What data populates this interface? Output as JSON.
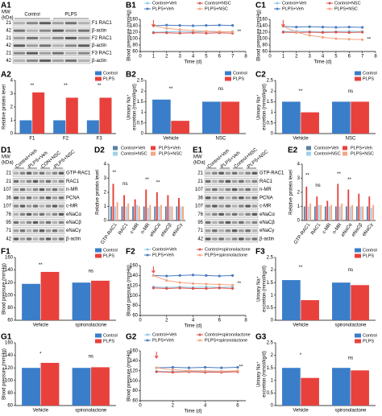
{
  "blots": [
    {
      "label": "A1",
      "mw_title": [
        "MW",
        "(kDa)"
      ],
      "lanes": [
        "Control",
        "PLPS"
      ],
      "rows": [
        {
          "mw": "21",
          "name": "F1 RAC1"
        },
        {
          "mw": "42",
          "name": "β-actin"
        },
        {
          "mw": "21",
          "name": "F2 RAC1"
        },
        {
          "mw": "42",
          "name": "β-actin"
        },
        {
          "mw": "21",
          "name": "F3 RAC1"
        },
        {
          "mw": "42",
          "name": "β-actin"
        }
      ]
    },
    {
      "label": "D1",
      "mw_title": [
        "MW",
        "(kDa)"
      ],
      "lanes": [
        "Control+Veh",
        "PLPS+Veh",
        "CON+NSC",
        "PLPS+NSC"
      ],
      "rows": [
        {
          "mw": "21",
          "name": "GTP-RAC1"
        },
        {
          "mw": "21",
          "name": "RAC1"
        },
        {
          "mw": "107",
          "name": "n-MR"
        },
        {
          "mw": "36",
          "name": "PCNA"
        },
        {
          "mw": "107",
          "name": "c-MR"
        },
        {
          "mw": "76",
          "name": "eNaCα"
        },
        {
          "mw": "95",
          "name": "eNaCβ"
        },
        {
          "mw": "71",
          "name": "eNaCγ"
        },
        {
          "mw": "42",
          "name": "β-actin"
        }
      ]
    },
    {
      "label": "E1",
      "mw_title": [
        "MW",
        "(kDa)"
      ],
      "lanes": [
        "Control+Veh",
        "PLPS+Veh",
        "Control+NSC",
        "PLPS+NSC"
      ],
      "rows": [
        {
          "mw": "21",
          "name": "GTP-RAC1"
        },
        {
          "mw": "21",
          "name": "RAC1"
        },
        {
          "mw": "107",
          "name": "n-MR"
        },
        {
          "mw": "36",
          "name": "PCNA"
        },
        {
          "mw": "107",
          "name": "c-MR"
        },
        {
          "mw": "76",
          "name": "eNaCα"
        },
        {
          "mw": "95",
          "name": "eNaCβ"
        },
        {
          "mw": "71",
          "name": "eNaCγ"
        },
        {
          "mw": "42",
          "name": "β-actin"
        }
      ]
    }
  ],
  "chart_data": [
    {
      "label": "B1",
      "type": "line",
      "legend": "top",
      "ylabel": [
        "Blood pressure (mmHg)"
      ],
      "xlabel": "Time (d)",
      "x": [
        1,
        2,
        3,
        4,
        5,
        6,
        7
      ],
      "xlim": [
        0,
        8
      ],
      "xticks": [
        0,
        1,
        2,
        3,
        4,
        5,
        6,
        7,
        8
      ],
      "ylim": [
        60,
        160
      ],
      "yticks": [
        60,
        80,
        100,
        120,
        140,
        160
      ],
      "series": [
        {
          "name": "Control+Veh",
          "color": "#8cc8e8",
          "values": [
            120,
            121,
            122,
            121,
            122,
            121,
            122
          ]
        },
        {
          "name": "Control+NSC",
          "color": "#d9534f",
          "values": [
            118,
            118,
            117,
            118,
            117,
            118,
            117
          ]
        },
        {
          "name": "PLPS+Veh",
          "color": "#4a7bbf",
          "values": [
            140,
            142,
            141,
            140,
            141,
            142,
            141
          ]
        },
        {
          "name": "PLPS+NSC",
          "color": "#f4a582",
          "values": [
            140,
            132,
            128,
            125,
            123,
            122,
            121
          ]
        }
      ],
      "annotations": [
        {
          "text": "**",
          "x": 7.5,
          "y": 122
        }
      ]
    },
    {
      "label": "C1",
      "type": "line",
      "legend": "top",
      "ylabel": [
        "Blood pressure (mmHg)"
      ],
      "xlabel": "Time (d)",
      "x": [
        1,
        2,
        3,
        4,
        5,
        6,
        7
      ],
      "xlim": [
        0,
        8
      ],
      "xticks": [
        0,
        1,
        2,
        3,
        4,
        5,
        6,
        7,
        8
      ],
      "ylim": [
        60,
        160
      ],
      "yticks": [
        60,
        80,
        100,
        120,
        140,
        160
      ],
      "series": [
        {
          "name": "Control+Veh",
          "color": "#8cc8e8",
          "values": [
            122,
            123,
            122,
            121,
            122,
            123,
            122
          ]
        },
        {
          "name": "Control+NSC",
          "color": "#d9534f",
          "values": [
            120,
            119,
            120,
            119,
            120,
            119,
            120
          ]
        },
        {
          "name": "PLPS+Veh",
          "color": "#4a7bbf",
          "values": [
            138,
            136,
            137,
            136,
            135,
            136,
            135
          ]
        },
        {
          "name": "PLPS+NSC",
          "color": "#f4a582",
          "values": [
            138,
            120,
            110,
            104,
            100,
            98,
            97
          ]
        }
      ],
      "annotations": [
        {
          "text": "**",
          "x": 7.5,
          "y": 98
        }
      ]
    },
    {
      "label": "A2",
      "type": "bar",
      "legend": "upper right",
      "ylabel": [
        "Relative protein level"
      ],
      "categories": [
        "F1",
        "F2",
        "F3"
      ],
      "ylim": [
        0,
        4
      ],
      "yticks": [
        0,
        1,
        2,
        3,
        4
      ],
      "series": [
        {
          "name": "Control",
          "color": "#3a7dc9",
          "values": [
            1,
            1,
            1
          ]
        },
        {
          "name": "PLPS",
          "color": "#e8413c",
          "values": [
            3.1,
            2.7,
            2.7
          ]
        }
      ],
      "annotations": [
        {
          "text": "**",
          "category": 0,
          "y": 3.6
        },
        {
          "text": "**",
          "category": 1,
          "y": 3.6
        },
        {
          "text": "**",
          "category": 2,
          "y": 3.6
        }
      ]
    },
    {
      "label": "B2",
      "type": "bar",
      "legend": "upper right",
      "ylabel": [
        "Urinary Na⁺",
        "excretion (mmol/kg/d)"
      ],
      "categories": [
        "Vehicle",
        "NSC"
      ],
      "ylim": [
        0,
        2.5
      ],
      "yticks": [
        0,
        0.5,
        1,
        1.5,
        2,
        2.5
      ],
      "series": [
        {
          "name": "Control",
          "color": "#3a7dc9",
          "values": [
            1.6,
            1.5
          ]
        },
        {
          "name": "PLPS",
          "color": "#e8413c",
          "values": [
            0.6,
            1.5
          ]
        }
      ],
      "annotations": [
        {
          "text": "**",
          "category": 0,
          "y": 2.1
        },
        {
          "text": "ns",
          "category": 1,
          "y": 2.1
        }
      ]
    },
    {
      "label": "C2",
      "type": "bar",
      "legend": "upper right",
      "ylabel": [
        "Urinary Na⁺",
        "excretion (mmol/kg/d)"
      ],
      "categories": [
        "Vehicle",
        "NSC"
      ],
      "ylim": [
        0,
        2.5
      ],
      "yticks": [
        0,
        0.5,
        1,
        1.5,
        2,
        2.5
      ],
      "series": [
        {
          "name": "Control",
          "color": "#3a7dc9",
          "values": [
            1.5,
            1.5
          ]
        },
        {
          "name": "PLPS",
          "color": "#e8413c",
          "values": [
            1.0,
            1.5
          ]
        }
      ],
      "annotations": [
        {
          "text": "**",
          "category": 0,
          "y": 2.0
        },
        {
          "text": "ns",
          "category": 1,
          "y": 2.0
        }
      ]
    },
    {
      "label": "D2",
      "type": "bar",
      "legend": "top",
      "ylabel": [
        "Relative protein level"
      ],
      "categories": [
        "GTP-RAC1",
        "RAC1",
        "c-MR",
        "n-MR",
        "eNaCα",
        "eNaCβ",
        "eNaCγ"
      ],
      "ylim": [
        0,
        4
      ],
      "yticks": [
        0,
        1,
        2,
        3,
        4
      ],
      "series": [
        {
          "name": "Control+Veh",
          "color": "#5b7fa6",
          "values": [
            1,
            1,
            1,
            1,
            1,
            1,
            1
          ]
        },
        {
          "name": "PLPS+Veh",
          "color": "#e8413c",
          "values": [
            2.6,
            1.8,
            1.5,
            2.2,
            2.0,
            1.8,
            1.6
          ]
        },
        {
          "name": "Control+NSC",
          "color": "#9fd0ea",
          "values": [
            1.0,
            1.0,
            1.1,
            0.9,
            1.0,
            1.0,
            1.0
          ]
        },
        {
          "name": "PLPS+NSC",
          "color": "#f4a582",
          "values": [
            1.3,
            1.2,
            1.0,
            1.1,
            1.1,
            1.0,
            1.0
          ]
        }
      ],
      "annotations": [
        {
          "text": "**",
          "category": 0,
          "y": 3.4
        },
        {
          "text": "ns",
          "category": 1,
          "y": 2.6
        },
        {
          "text": "**",
          "category": 3,
          "y": 2.9
        },
        {
          "text": "**",
          "category": 4,
          "y": 2.7
        }
      ]
    },
    {
      "label": "E2",
      "type": "bar",
      "legend": "top",
      "ylabel": [
        "Relative protein level"
      ],
      "categories": [
        "GTP-RAC1",
        "RAC1",
        "c-MR",
        "n-MR",
        "eNaCα",
        "eNaCβ",
        "eNaCγ"
      ],
      "ylim": [
        0,
        4
      ],
      "yticks": [
        0,
        1,
        2,
        3,
        4
      ],
      "series": [
        {
          "name": "Control+Veh",
          "color": "#5b7fa6",
          "values": [
            1,
            1,
            1,
            1,
            1,
            1,
            1
          ]
        },
        {
          "name": "PLPS+Veh",
          "color": "#e8413c",
          "values": [
            2.4,
            1.7,
            1.4,
            2.6,
            2.2,
            1.9,
            1.7
          ]
        },
        {
          "name": "Control+NSC",
          "color": "#9fd0ea",
          "values": [
            1.0,
            1.1,
            1.0,
            1.0,
            1.0,
            1.0,
            0.9
          ]
        },
        {
          "name": "PLPS+NSC",
          "color": "#f4a582",
          "values": [
            1.2,
            1.1,
            1.1,
            1.2,
            1.1,
            1.0,
            1.1
          ]
        }
      ],
      "annotations": [
        {
          "text": "**",
          "category": 0,
          "y": 3.2
        },
        {
          "text": "ns",
          "category": 1,
          "y": 2.5
        },
        {
          "text": "**",
          "category": 3,
          "y": 3.3
        },
        {
          "text": "**",
          "category": 4,
          "y": 2.9
        }
      ]
    },
    {
      "label": "F1",
      "type": "bar",
      "legend": "upper right",
      "ylabel": [
        "Blood pressure (mmHg)"
      ],
      "categories": [
        "Vehicle",
        "spironolactone"
      ],
      "ylim": [
        60,
        160
      ],
      "yticks": [
        60,
        80,
        100,
        120,
        140,
        160
      ],
      "series": [
        {
          "name": "Control",
          "color": "#3a7dc9",
          "values": [
            118,
            120
          ]
        },
        {
          "name": "PLPS",
          "color": "#e8413c",
          "values": [
            137,
            123
          ]
        }
      ],
      "annotations": [
        {
          "text": "**",
          "category": 0,
          "y": 148
        },
        {
          "text": "ns",
          "category": 1,
          "y": 138
        }
      ]
    },
    {
      "label": "F2",
      "type": "line",
      "legend": "top",
      "ylabel": [
        "Blood pressure (mmHg)"
      ],
      "xlabel": "Time (d)",
      "x": [
        1,
        2,
        3,
        4,
        5,
        6,
        7
      ],
      "xlim": [
        0,
        8
      ],
      "xticks": [
        0,
        2,
        4,
        6,
        8
      ],
      "ylim": [
        60,
        160
      ],
      "yticks": [
        60,
        80,
        100,
        120,
        140,
        160
      ],
      "series": [
        {
          "name": "Control+Veh",
          "color": "#8cc8e8",
          "values": [
            117,
            116,
            117,
            116,
            117,
            116,
            117
          ]
        },
        {
          "name": "Control+spironolactone",
          "color": "#d9534f",
          "values": [
            115,
            114,
            115,
            114,
            114,
            115,
            114
          ]
        },
        {
          "name": "PLPS+Veh",
          "color": "#4a7bbf",
          "values": [
            140,
            139,
            140,
            141,
            140,
            139,
            140
          ]
        },
        {
          "name": "PLPS+spironolactone",
          "color": "#f4a582",
          "values": [
            140,
            130,
            126,
            124,
            123,
            122,
            121
          ]
        }
      ],
      "annotations": [
        {
          "text": "**",
          "x": 7.5,
          "y": 124
        }
      ]
    },
    {
      "label": "F3",
      "type": "bar",
      "legend": "upper right",
      "ylabel": [
        "Urinary Na⁺",
        "excretion (mmol/kg/d)"
      ],
      "categories": [
        "Vehicle",
        "spironolactone"
      ],
      "ylim": [
        0,
        2.5
      ],
      "yticks": [
        0,
        0.5,
        1,
        1.5,
        2,
        2.5
      ],
      "series": [
        {
          "name": "Control",
          "color": "#3a7dc9",
          "values": [
            1.6,
            1.5
          ]
        },
        {
          "name": "PLPS",
          "color": "#e8413c",
          "values": [
            0.8,
            1.4
          ]
        }
      ],
      "annotations": [
        {
          "text": "**",
          "category": 0,
          "y": 2.1
        },
        {
          "text": "ns",
          "category": 1,
          "y": 2.0
        }
      ]
    },
    {
      "label": "G1",
      "type": "bar",
      "legend": "upper right",
      "ylabel": [
        "Blood pressure (mmHg)"
      ],
      "categories": [
        "Vehicle",
        "spironolactone"
      ],
      "ylim": [
        60,
        160
      ],
      "yticks": [
        60,
        80,
        100,
        120,
        140,
        160
      ],
      "series": [
        {
          "name": "Control",
          "color": "#3a7dc9",
          "values": [
            120,
            120
          ]
        },
        {
          "name": "PLPS",
          "color": "#e8413c",
          "values": [
            128,
            121
          ]
        }
      ],
      "annotations": [
        {
          "text": "*",
          "category": 0,
          "y": 142
        },
        {
          "text": "ns",
          "category": 1,
          "y": 138
        }
      ]
    },
    {
      "label": "G2",
      "type": "line",
      "legend": "top",
      "ylabel": [
        "Blood pressure (mmHg)"
      ],
      "xlabel": "Time (d)",
      "x": [
        1,
        2,
        3,
        4,
        5,
        6
      ],
      "xlim": [
        0,
        6.5
      ],
      "xticks": [
        0,
        2,
        4,
        6
      ],
      "ylim": [
        60,
        160
      ],
      "yticks": [
        60,
        80,
        100,
        120,
        140,
        160
      ],
      "series": [
        {
          "name": "Control+Veh",
          "color": "#8cc8e8",
          "values": [
            119,
            118,
            119,
            118,
            119,
            118
          ]
        },
        {
          "name": "Control+spironolactone",
          "color": "#d9534f",
          "values": [
            118,
            117,
            118,
            117,
            117,
            118
          ]
        },
        {
          "name": "PLPS+Veh",
          "color": "#4a7bbf",
          "values": [
            126,
            127,
            126,
            127,
            126,
            127
          ]
        },
        {
          "name": "PLPS+spironolactone",
          "color": "#f4a582",
          "values": [
            126,
            122,
            120,
            120,
            119,
            120
          ]
        }
      ],
      "annotations": [
        {
          "text": "**",
          "x": 6.2,
          "y": 128
        }
      ]
    },
    {
      "label": "G3",
      "type": "bar",
      "legend": "upper right",
      "ylabel": [
        "Urinary Na⁺",
        "excretion (mmol/kg/d)"
      ],
      "categories": [
        "Vehicle",
        "spironolactone"
      ],
      "ylim": [
        0,
        2.5
      ],
      "yticks": [
        0,
        0.5,
        1,
        1.5,
        2,
        2.5
      ],
      "series": [
        {
          "name": "Control",
          "color": "#3a7dc9",
          "values": [
            1.5,
            1.5
          ]
        },
        {
          "name": "PLPS",
          "color": "#e8413c",
          "values": [
            1.1,
            1.4
          ]
        }
      ],
      "annotations": [
        {
          "text": "*",
          "category": 0,
          "y": 2.0
        },
        {
          "text": "ns",
          "category": 1,
          "y": 1.9
        }
      ]
    }
  ]
}
